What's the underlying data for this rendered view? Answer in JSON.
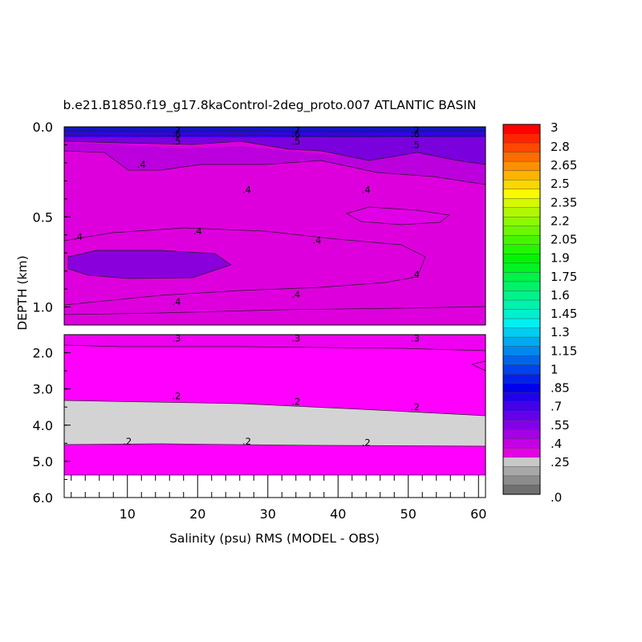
{
  "chart_data": {
    "type": "heatmap",
    "title": "b.e21.B1850.f19_g17.8kaControl-2deg_proto.007 ATLANTIC BASIN",
    "xlabel": "Salinity (psu) RMS (MODEL - OBS)",
    "ylabel": "DEPTH (km)",
    "xlim": [
      1,
      61
    ],
    "x_ticks": [
      "10",
      "20",
      "30",
      "40",
      "50",
      "60"
    ],
    "panels": [
      {
        "name": "upper",
        "ylim": [
          0.0,
          1.1
        ],
        "y_ticks": [
          "0.0",
          "0.5",
          "1.0"
        ],
        "contour_labels": [
          {
            "x": 17,
            "y": 0.02,
            "text": ".7"
          },
          {
            "x": 17,
            "y": 0.04,
            "text": ".6"
          },
          {
            "x": 17,
            "y": 0.08,
            "text": ".5"
          },
          {
            "x": 34,
            "y": 0.02,
            "text": ".7"
          },
          {
            "x": 34,
            "y": 0.04,
            "text": ".6"
          },
          {
            "x": 34,
            "y": 0.08,
            "text": ".5"
          },
          {
            "x": 51,
            "y": 0.02,
            "text": ".7"
          },
          {
            "x": 51,
            "y": 0.04,
            "text": ".6"
          },
          {
            "x": 51,
            "y": 0.1,
            "text": ".5"
          },
          {
            "x": 12,
            "y": 0.21,
            "text": ".4"
          },
          {
            "x": 27,
            "y": 0.35,
            "text": ".4"
          },
          {
            "x": 44,
            "y": 0.35,
            "text": ".4"
          },
          {
            "x": 3,
            "y": 0.61,
            "text": ".4"
          },
          {
            "x": 20,
            "y": 0.58,
            "text": ".4"
          },
          {
            "x": 37,
            "y": 0.63,
            "text": ".4"
          },
          {
            "x": 51,
            "y": 0.82,
            "text": ".4"
          },
          {
            "x": 34,
            "y": 0.93,
            "text": ".4"
          },
          {
            "x": 17,
            "y": 0.97,
            "text": ".4"
          }
        ]
      },
      {
        "name": "lower",
        "ylim": [
          1.5,
          6.0
        ],
        "y_ticks": [
          "2.0",
          "3.0",
          "4.0",
          "5.0",
          "6.0"
        ],
        "contour_labels": [
          {
            "x": 17,
            "y": 1.6,
            "text": ".3"
          },
          {
            "x": 34,
            "y": 1.6,
            "text": ".3"
          },
          {
            "x": 51,
            "y": 1.6,
            "text": ".3"
          },
          {
            "x": 17,
            "y": 3.2,
            "text": ".2"
          },
          {
            "x": 34,
            "y": 3.35,
            "text": ".2"
          },
          {
            "x": 51,
            "y": 3.5,
            "text": ".2"
          },
          {
            "x": 10,
            "y": 4.45,
            "text": ".2"
          },
          {
            "x": 27,
            "y": 4.45,
            "text": ".2"
          },
          {
            "x": 44,
            "y": 4.48,
            "text": ".2"
          }
        ]
      }
    ],
    "colorbar": {
      "range": [
        0,
        3
      ],
      "labels": [
        "3",
        "2.8",
        "2.65",
        "2.5",
        "2.35",
        "2.2",
        "2.05",
        "1.9",
        "1.75",
        "1.6",
        "1.45",
        "1.3",
        "1.15",
        "1",
        ".85",
        ".7",
        ".55",
        ".4",
        ".25",
        ".0"
      ]
    }
  }
}
